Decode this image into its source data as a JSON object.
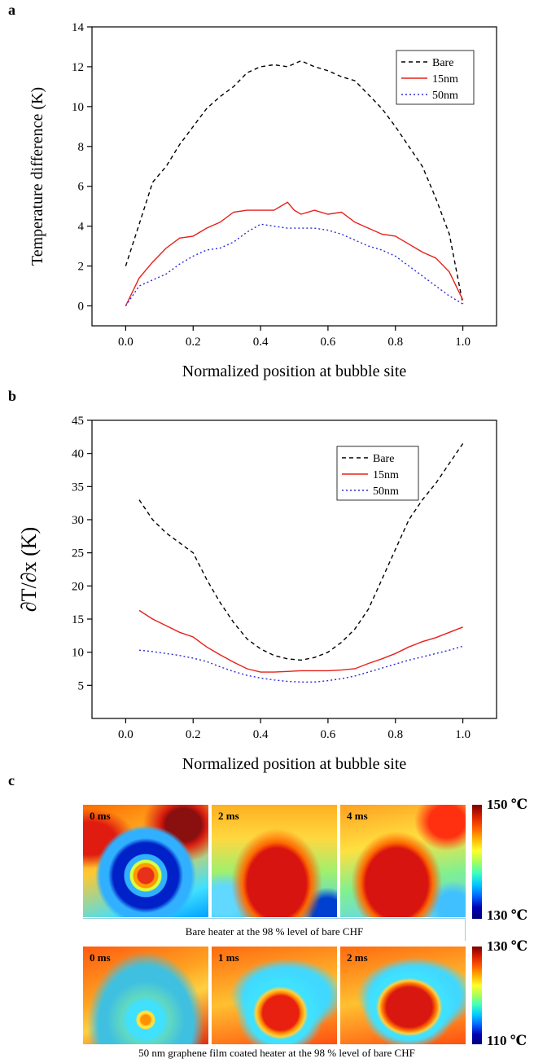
{
  "panels": {
    "a": "a",
    "b": "b",
    "c": "c"
  },
  "chart_data": [
    {
      "type": "line",
      "ylabel": "Temperature difference (K)",
      "xlabel": "Normalized position at bubble site",
      "xlim": [
        -0.1,
        1.1
      ],
      "ylim": [
        -1,
        14
      ],
      "xticks": [
        "0.0",
        "0.2",
        "0.4",
        "0.6",
        "0.8",
        "1.0"
      ],
      "yticks": [
        "0",
        "2",
        "4",
        "6",
        "8",
        "10",
        "12",
        "14"
      ],
      "legend_position": "top-right",
      "series": [
        {
          "name": "Bare",
          "color": "#000000",
          "style": "dashed",
          "x": [
            0.0,
            0.04,
            0.08,
            0.12,
            0.16,
            0.2,
            0.24,
            0.28,
            0.32,
            0.36,
            0.4,
            0.44,
            0.48,
            0.52,
            0.56,
            0.6,
            0.64,
            0.68,
            0.72,
            0.76,
            0.8,
            0.84,
            0.88,
            0.92,
            0.96,
            1.0
          ],
          "y": [
            2.0,
            4.1,
            6.2,
            7.0,
            8.1,
            9.0,
            9.9,
            10.5,
            11.0,
            11.7,
            12.0,
            12.1,
            12.0,
            12.3,
            12.0,
            11.8,
            11.5,
            11.3,
            10.6,
            9.9,
            9.0,
            8.0,
            7.0,
            5.4,
            3.6,
            0.1
          ]
        },
        {
          "name": "15nm",
          "color": "#e8201a",
          "style": "solid",
          "x": [
            0.0,
            0.04,
            0.08,
            0.12,
            0.16,
            0.2,
            0.24,
            0.28,
            0.32,
            0.36,
            0.4,
            0.44,
            0.48,
            0.5,
            0.52,
            0.56,
            0.6,
            0.64,
            0.68,
            0.72,
            0.76,
            0.8,
            0.84,
            0.88,
            0.92,
            0.96,
            1.0
          ],
          "y": [
            0.0,
            1.4,
            2.2,
            2.9,
            3.4,
            3.5,
            3.9,
            4.2,
            4.7,
            4.8,
            4.8,
            4.8,
            5.2,
            4.8,
            4.6,
            4.8,
            4.6,
            4.7,
            4.2,
            3.9,
            3.6,
            3.5,
            3.1,
            2.7,
            2.4,
            1.7,
            0.3
          ]
        },
        {
          "name": "50nm",
          "color": "#2b2bd6",
          "style": "dotted",
          "x": [
            0.0,
            0.04,
            0.08,
            0.12,
            0.16,
            0.2,
            0.24,
            0.28,
            0.32,
            0.36,
            0.4,
            0.44,
            0.48,
            0.52,
            0.56,
            0.6,
            0.64,
            0.68,
            0.72,
            0.76,
            0.8,
            0.84,
            0.88,
            0.92,
            0.96,
            1.0
          ],
          "y": [
            0.0,
            1.0,
            1.3,
            1.6,
            2.1,
            2.5,
            2.8,
            2.9,
            3.2,
            3.7,
            4.1,
            4.0,
            3.9,
            3.9,
            3.9,
            3.8,
            3.6,
            3.3,
            3.0,
            2.8,
            2.5,
            2.0,
            1.5,
            1.0,
            0.5,
            0.1
          ]
        }
      ]
    },
    {
      "type": "line",
      "ylabel": "∂T/∂x (K)",
      "xlabel": "Normalized position at bubble site",
      "xlim": [
        -0.1,
        1.1
      ],
      "ylim": [
        0,
        45
      ],
      "xticks": [
        "0.0",
        "0.2",
        "0.4",
        "0.6",
        "0.8",
        "1.0"
      ],
      "yticks": [
        "5",
        "10",
        "15",
        "20",
        "25",
        "30",
        "35",
        "40",
        "45"
      ],
      "legend_position": "top-right",
      "series": [
        {
          "name": "Bare",
          "color": "#000000",
          "style": "dashed",
          "x": [
            0.04,
            0.08,
            0.12,
            0.16,
            0.2,
            0.24,
            0.28,
            0.32,
            0.36,
            0.4,
            0.44,
            0.48,
            0.52,
            0.56,
            0.6,
            0.64,
            0.68,
            0.72,
            0.76,
            0.8,
            0.84,
            0.88,
            0.92,
            0.96,
            1.0
          ],
          "y": [
            33.0,
            30.0,
            28.0,
            26.5,
            25.0,
            21.0,
            17.5,
            14.5,
            12.0,
            10.5,
            9.5,
            9.0,
            8.8,
            9.2,
            10.0,
            11.5,
            13.5,
            16.5,
            21.0,
            25.5,
            30.0,
            33.0,
            35.5,
            38.5,
            41.5
          ]
        },
        {
          "name": "15nm",
          "color": "#e8201a",
          "style": "solid",
          "x": [
            0.04,
            0.08,
            0.12,
            0.16,
            0.2,
            0.24,
            0.28,
            0.32,
            0.36,
            0.4,
            0.44,
            0.48,
            0.52,
            0.56,
            0.6,
            0.64,
            0.68,
            0.72,
            0.76,
            0.8,
            0.84,
            0.88,
            0.92,
            0.96,
            1.0
          ],
          "y": [
            16.3,
            15.0,
            14.0,
            13.0,
            12.3,
            10.8,
            9.6,
            8.5,
            7.5,
            7.0,
            7.0,
            7.1,
            7.2,
            7.2,
            7.2,
            7.3,
            7.5,
            8.3,
            9.0,
            9.8,
            10.8,
            11.6,
            12.2,
            13.0,
            13.8
          ]
        },
        {
          "name": "50nm",
          "color": "#2b2bd6",
          "style": "dotted",
          "x": [
            0.04,
            0.08,
            0.12,
            0.16,
            0.2,
            0.24,
            0.28,
            0.32,
            0.36,
            0.4,
            0.44,
            0.48,
            0.52,
            0.56,
            0.6,
            0.64,
            0.68,
            0.72,
            0.76,
            0.8,
            0.84,
            0.88,
            0.92,
            0.96,
            1.0
          ],
          "y": [
            10.3,
            10.1,
            9.8,
            9.5,
            9.1,
            8.6,
            7.8,
            7.1,
            6.5,
            6.1,
            5.8,
            5.6,
            5.5,
            5.5,
            5.7,
            6.0,
            6.4,
            7.0,
            7.6,
            8.2,
            8.8,
            9.3,
            9.8,
            10.3,
            10.9
          ]
        }
      ]
    }
  ],
  "thermal": {
    "row1": {
      "frames": [
        "0 ms",
        "2 ms",
        "4 ms"
      ],
      "caption": "Bare heater at the 98 % level of bare CHF",
      "scale_max": "150 ℃",
      "scale_min": "130 ℃"
    },
    "row2": {
      "frames": [
        "0 ms",
        "1 ms",
        "2 ms"
      ],
      "caption": "50 nm graphene film coated heater at the 98 % level of bare CHF",
      "scale_max": "130 ℃",
      "scale_min": "110 ℃"
    }
  }
}
